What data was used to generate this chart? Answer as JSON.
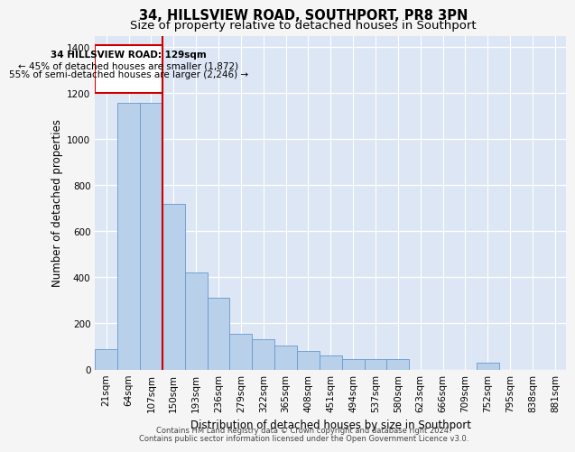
{
  "title": "34, HILLSVIEW ROAD, SOUTHPORT, PR8 3PN",
  "subtitle": "Size of property relative to detached houses in Southport",
  "xlabel": "Distribution of detached houses by size in Southport",
  "ylabel": "Number of detached properties",
  "footer1": "Contains HM Land Registry data © Crown copyright and database right 2024.",
  "footer2": "Contains public sector information licensed under the Open Government Licence v3.0.",
  "categories": [
    "21sqm",
    "64sqm",
    "107sqm",
    "150sqm",
    "193sqm",
    "236sqm",
    "279sqm",
    "322sqm",
    "365sqm",
    "408sqm",
    "451sqm",
    "494sqm",
    "537sqm",
    "580sqm",
    "623sqm",
    "666sqm",
    "709sqm",
    "752sqm",
    "795sqm",
    "838sqm",
    "881sqm"
  ],
  "values": [
    90,
    1160,
    1160,
    720,
    420,
    310,
    155,
    130,
    105,
    80,
    60,
    45,
    45,
    45,
    0,
    0,
    0,
    30,
    0,
    0,
    0
  ],
  "bar_color": "#b8d0ea",
  "bar_edge_color": "#6699cc",
  "plot_bg_color": "#dce6f5",
  "fig_bg_color": "#f5f5f5",
  "grid_color": "#ffffff",
  "vline_color": "#cc0000",
  "ylim": [
    0,
    1450
  ],
  "yticks": [
    0,
    200,
    400,
    600,
    800,
    1000,
    1200,
    1400
  ],
  "annotation_line1": "34 HILLSVIEW ROAD: 129sqm",
  "annotation_line2": "← 45% of detached houses are smaller (1,872)",
  "annotation_line3": "55% of semi-detached houses are larger (2,246) →",
  "annotation_box_color": "#cc0000",
  "title_fontsize": 10.5,
  "subtitle_fontsize": 9.5,
  "axis_label_fontsize": 8.5,
  "tick_fontsize": 7.5,
  "annotation_fontsize": 7.5,
  "footer_fontsize": 6.0
}
